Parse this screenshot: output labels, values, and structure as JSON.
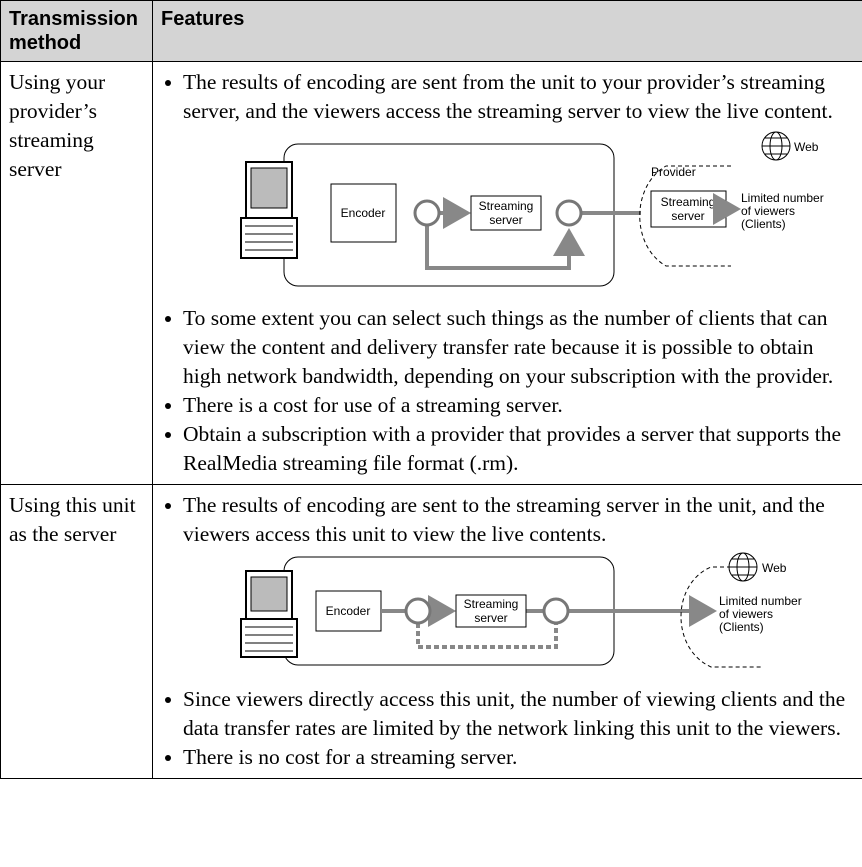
{
  "header": {
    "method": "Transmission method",
    "features": "Features"
  },
  "rows": [
    {
      "method": "Using your provider’s streaming server",
      "bullets_before": [
        "The results of encoding are sent from the unit to your provider’s streaming server, and the viewers access the streaming server to view the live content."
      ],
      "diagram": {
        "encoder": "Encoder",
        "server": [
          "Streaming",
          "server"
        ],
        "provider": "Provider",
        "provider_server": [
          "Streaming",
          "server"
        ],
        "web": "Web",
        "viewers": [
          "Limited number",
          "of viewers",
          "(Clients)"
        ]
      },
      "bullets_after": [
        "To some extent you can select such things as the number of clients that can view the content and delivery transfer rate because it is possible to obtain high network bandwidth, depending on your subscription with the provider.",
        "There is a cost for use of a streaming server.",
        "Obtain a subscription with a provider that provides a server that supports the RealMedia streaming file format (.rm)."
      ]
    },
    {
      "method": "Using this unit as the server",
      "bullets_before": [
        "The results of encoding are sent to the streaming server in the unit, and the viewers access this unit to view the live contents."
      ],
      "diagram": {
        "encoder": "Encoder",
        "server": [
          "Streaming",
          "server"
        ],
        "web": "Web",
        "viewers": [
          "Limited number",
          "of viewers",
          "(Clients)"
        ]
      },
      "bullets_after": [
        "Since viewers directly access this unit, the number of viewing clients and the data transfer rates are limited by the network linking this unit to the viewers.",
        "There is no cost for a streaming server."
      ]
    }
  ]
}
